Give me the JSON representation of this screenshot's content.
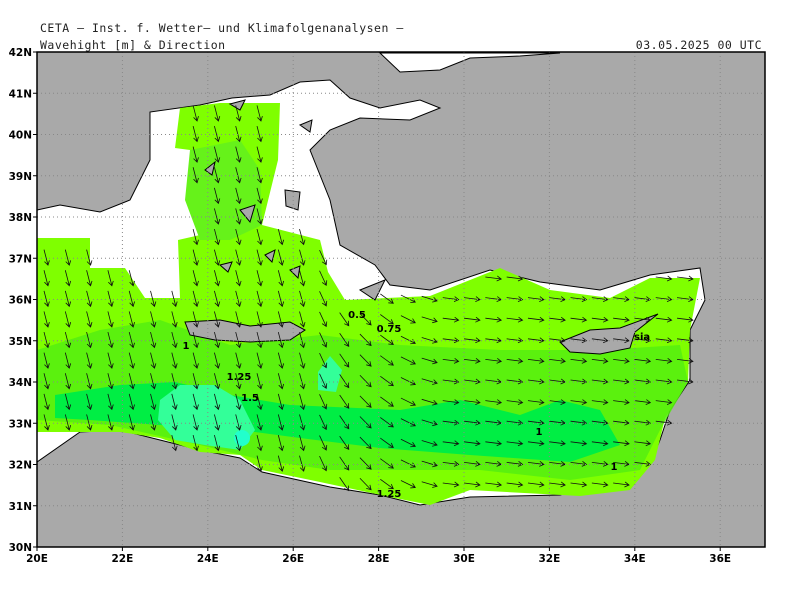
{
  "header": {
    "institute": "CETA — Inst. f. Wetter— und Klimafolgenanalysen —",
    "title": "Wavehight [m] & Direction",
    "time": "03.05.2025 00 UTC"
  },
  "axes": {
    "lat_labels": [
      "30N",
      "31N",
      "32N",
      "33N",
      "34N",
      "35N",
      "36N",
      "37N",
      "38N",
      "39N",
      "40N",
      "41N",
      "42N"
    ],
    "lon_labels": [
      "20E",
      "22E",
      "24E",
      "26E",
      "28E",
      "30E",
      "32E",
      "34E",
      "36E"
    ]
  },
  "contour_labels": [
    "0.5",
    "0.75",
    "1",
    "1.25",
    "1.5",
    "1",
    "1",
    "1.25"
  ],
  "place_labels": [
    "sia"
  ]
}
